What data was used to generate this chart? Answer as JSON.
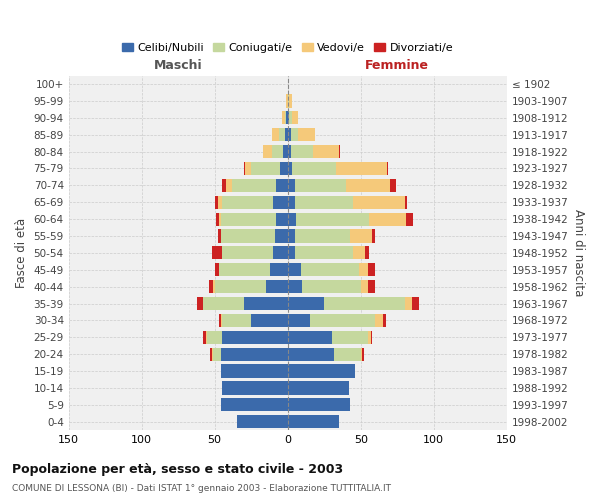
{
  "age_groups": [
    "0-4",
    "5-9",
    "10-14",
    "15-19",
    "20-24",
    "25-29",
    "30-34",
    "35-39",
    "40-44",
    "45-49",
    "50-54",
    "55-59",
    "60-64",
    "65-69",
    "70-74",
    "75-79",
    "80-84",
    "85-89",
    "90-94",
    "95-99",
    "100+"
  ],
  "birth_years": [
    "1998-2002",
    "1993-1997",
    "1988-1992",
    "1983-1987",
    "1978-1982",
    "1973-1977",
    "1968-1972",
    "1963-1967",
    "1958-1962",
    "1953-1957",
    "1948-1952",
    "1943-1947",
    "1938-1942",
    "1933-1937",
    "1928-1932",
    "1923-1927",
    "1918-1922",
    "1913-1917",
    "1908-1912",
    "1903-1907",
    "≤ 1902"
  ],
  "maschi": {
    "celibi": [
      35,
      46,
      45,
      46,
      46,
      45,
      25,
      30,
      15,
      12,
      10,
      9,
      8,
      10,
      8,
      5,
      3,
      2,
      1,
      0,
      0
    ],
    "coniugati": [
      0,
      0,
      0,
      0,
      5,
      10,
      20,
      28,
      35,
      35,
      35,
      37,
      38,
      35,
      30,
      20,
      8,
      4,
      1,
      0,
      0
    ],
    "vedovi": [
      0,
      0,
      0,
      0,
      1,
      1,
      1,
      0,
      1,
      0,
      0,
      0,
      1,
      3,
      4,
      4,
      6,
      5,
      2,
      1,
      0
    ],
    "divorziati": [
      0,
      0,
      0,
      0,
      1,
      2,
      1,
      4,
      3,
      3,
      7,
      2,
      2,
      2,
      3,
      1,
      0,
      0,
      0,
      0,
      0
    ]
  },
  "femmine": {
    "nubili": [
      35,
      43,
      42,
      46,
      32,
      30,
      15,
      25,
      10,
      9,
      5,
      5,
      6,
      5,
      5,
      3,
      2,
      2,
      1,
      0,
      0
    ],
    "coniugate": [
      0,
      0,
      0,
      0,
      18,
      25,
      45,
      55,
      40,
      40,
      40,
      38,
      50,
      40,
      35,
      30,
      15,
      5,
      2,
      1,
      0
    ],
    "vedove": [
      0,
      0,
      0,
      0,
      1,
      2,
      5,
      5,
      5,
      6,
      8,
      15,
      25,
      35,
      30,
      35,
      18,
      12,
      4,
      2,
      0
    ],
    "divorziate": [
      0,
      0,
      0,
      0,
      1,
      1,
      2,
      5,
      5,
      5,
      3,
      2,
      5,
      2,
      4,
      1,
      1,
      0,
      0,
      0,
      0
    ]
  },
  "colors": {
    "celibi": "#3b6aab",
    "coniugati": "#c5d89e",
    "vedovi": "#f5c97a",
    "divorziati": "#cc2222"
  },
  "xlim": 150,
  "title": "Popolazione per età, sesso e stato civile - 2003",
  "subtitle": "COMUNE DI LESSONA (BI) - Dati ISTAT 1° gennaio 2003 - Elaborazione TUTTITALIA.IT",
  "ylabel_left": "Fasce di età",
  "ylabel_right": "Anni di nascita",
  "legend_labels": [
    "Celibi/Nubili",
    "Coniugati/e",
    "Vedovi/e",
    "Divorziati/e"
  ],
  "maschi_label": "Maschi",
  "femmine_label": "Femmine",
  "background_color": "#ffffff",
  "plot_bg_color": "#f0f0f0",
  "grid_color": "#cccccc"
}
